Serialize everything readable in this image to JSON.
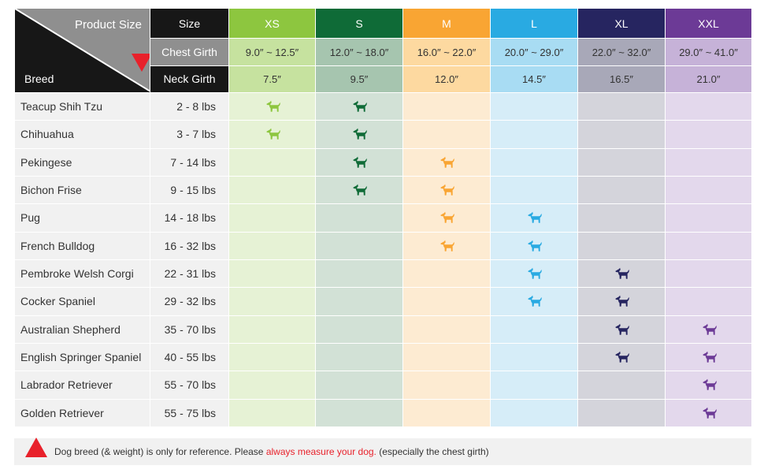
{
  "header": {
    "corner_title": "Product Size",
    "corner_breed": "Breed",
    "size_label": "Size",
    "chest_label": "Chest Girth",
    "neck_label": "Neck Girth"
  },
  "sizes": [
    {
      "label": "XS",
      "chest": "9.0″ ~ 12.5″",
      "neck": "7.5″",
      "color": "#8dc63f",
      "chest_bg": "#c6e29f",
      "body_bg": "#e6f2d5"
    },
    {
      "label": "S",
      "chest": "12.0″ ~ 18.0″",
      "neck": "9.5″",
      "color": "#0f6b37",
      "chest_bg": "#a6c5af",
      "body_bg": "#d2e1d6"
    },
    {
      "label": "M",
      "chest": "16.0″ ~ 22.0″",
      "neck": "12.0″",
      "color": "#f9a533",
      "chest_bg": "#fdd9a0",
      "body_bg": "#fdebd2"
    },
    {
      "label": "L",
      "chest": "20.0″ ~ 29.0″",
      "neck": "14.5″",
      "color": "#29aae2",
      "chest_bg": "#a8dcf3",
      "body_bg": "#d6edf8"
    },
    {
      "label": "XL",
      "chest": "22.0″ ~ 32.0″",
      "neck": "16.5″",
      "color": "#262560",
      "chest_bg": "#a8a8b8",
      "body_bg": "#d4d4db"
    },
    {
      "label": "XXL",
      "chest": "29.0″ ~ 41.0″",
      "neck": "21.0″",
      "color": "#6c3a96",
      "chest_bg": "#c6b2d8",
      "body_bg": "#e3d8ec"
    }
  ],
  "breeds": [
    {
      "name": "Teacup Shih Tzu",
      "weight": "2 - 8 lbs",
      "fits": [
        0,
        1
      ]
    },
    {
      "name": "Chihuahua",
      "weight": "3 - 7 lbs",
      "fits": [
        0,
        1
      ]
    },
    {
      "name": "Pekingese",
      "weight": "7 - 14 lbs",
      "fits": [
        1,
        2
      ]
    },
    {
      "name": "Bichon Frise",
      "weight": "9 - 15 lbs",
      "fits": [
        1,
        2
      ]
    },
    {
      "name": "Pug",
      "weight": "14 - 18 lbs",
      "fits": [
        2,
        3
      ]
    },
    {
      "name": "French Bulldog",
      "weight": "16 - 32 lbs",
      "fits": [
        2,
        3
      ]
    },
    {
      "name": "Pembroke Welsh Corgi",
      "weight": "22 - 31 lbs",
      "fits": [
        3,
        4
      ]
    },
    {
      "name": "Cocker Spaniel",
      "weight": "29 - 32 lbs",
      "fits": [
        3,
        4
      ]
    },
    {
      "name": "Australian Shepherd",
      "weight": "35 - 70 lbs",
      "fits": [
        4,
        5
      ]
    },
    {
      "name": "English Springer Spaniel",
      "weight": "40 - 55 lbs",
      "fits": [
        4,
        5
      ]
    },
    {
      "name": "Labrador Retriever",
      "weight": "55 - 70 lbs",
      "fits": [
        5
      ]
    },
    {
      "name": "Golden Retriever",
      "weight": "55 - 75 lbs",
      "fits": [
        5
      ]
    }
  ],
  "fit_icon": "dog-icon",
  "footer": {
    "text_before": "Dog breed (& weight) is only for reference. Please ",
    "highlight": "always measure your dog.",
    "text_after": " (especially the chest girth)",
    "marker_color": "#e8212b"
  }
}
